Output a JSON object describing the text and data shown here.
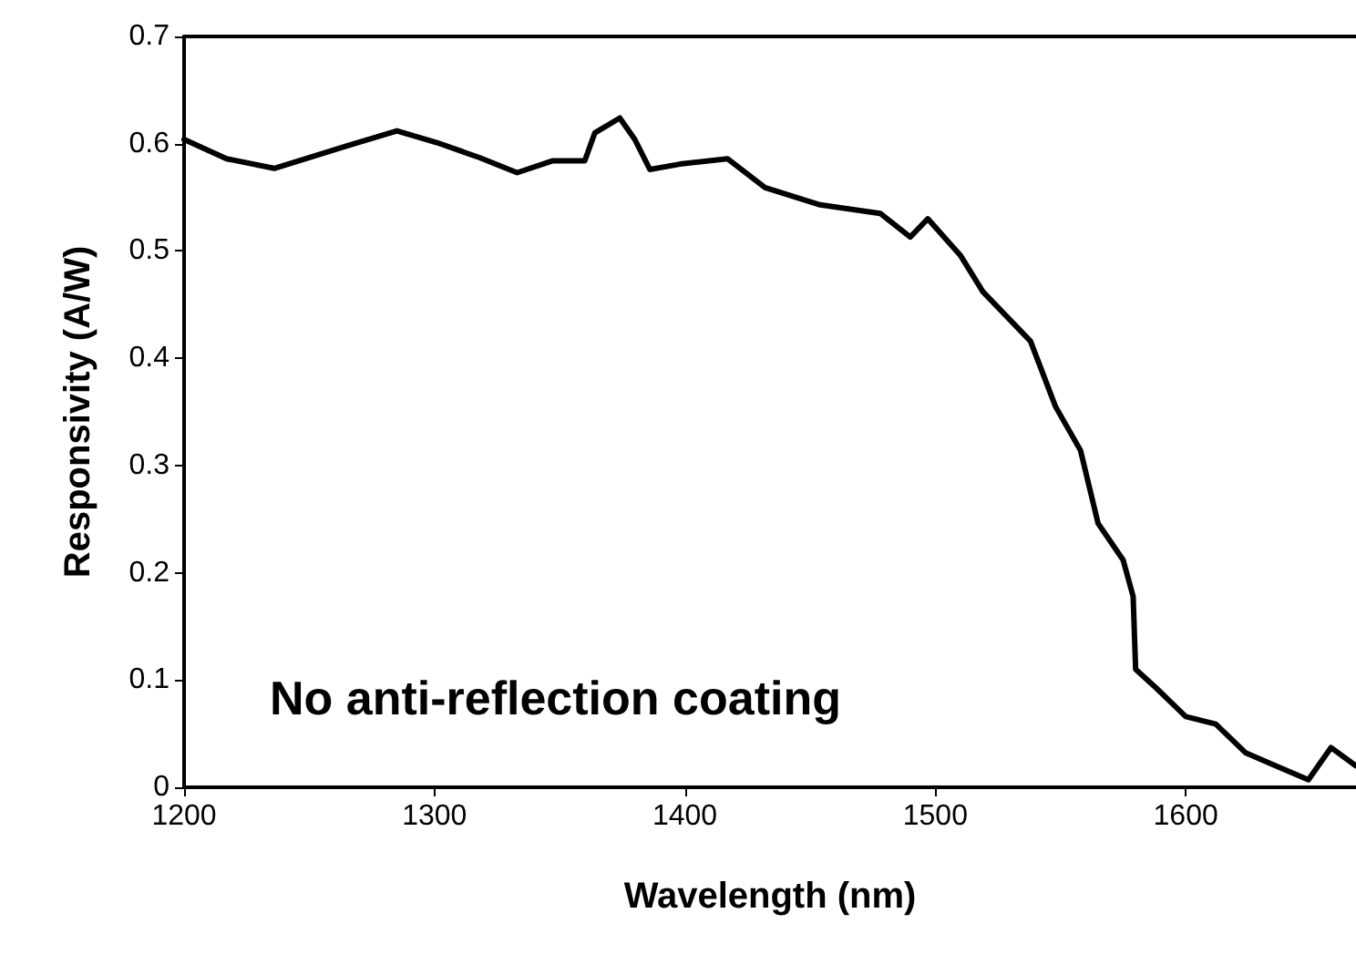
{
  "chart_data": {
    "type": "line",
    "xlabel": "Wavelength (nm)",
    "ylabel": "Responsivity (A/W)",
    "annotations": [
      "No anti-reflection coating"
    ],
    "xlim": [
      1200,
      1668
    ],
    "xticks": [
      1200,
      1300,
      1400,
      1500,
      1600
    ],
    "ylim": [
      0,
      0.7
    ],
    "yticks": [
      0,
      0.1,
      0.2,
      0.3,
      0.4,
      0.5,
      0.6,
      0.7
    ],
    "grid": false,
    "marker": "none",
    "line_style": "solid",
    "series": [
      {
        "color": "#000000",
        "x": [
          1200,
          1217,
          1236,
          1265,
          1285,
          1301,
          1318,
          1333,
          1347,
          1360,
          1364,
          1374,
          1380,
          1386,
          1398,
          1417,
          1432,
          1454,
          1478,
          1490,
          1497,
          1510,
          1519,
          1531,
          1538,
          1548,
          1558,
          1565,
          1575,
          1579,
          1580,
          1588,
          1600,
          1612,
          1624,
          1636,
          1649,
          1658,
          1668
        ],
        "values": [
          0.604,
          0.586,
          0.577,
          0.598,
          0.612,
          0.601,
          0.587,
          0.573,
          0.584,
          0.584,
          0.61,
          0.624,
          0.604,
          0.576,
          0.581,
          0.586,
          0.559,
          0.543,
          0.535,
          0.513,
          0.53,
          0.496,
          0.462,
          0.433,
          0.416,
          0.355,
          0.314,
          0.246,
          0.212,
          0.178,
          0.11,
          0.093,
          0.066,
          0.059,
          0.032,
          0.02,
          0.007,
          0.037,
          0.02
        ]
      }
    ]
  }
}
